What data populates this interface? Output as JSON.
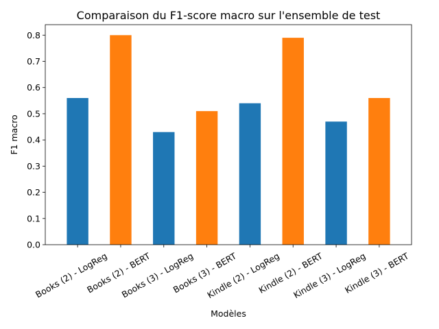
{
  "chart_data": {
    "type": "bar",
    "title": "Comparaison du F1-score macro sur l'ensemble de test",
    "xlabel": "Modèles",
    "ylabel": "F1 macro",
    "ylim": [
      0,
      0.84
    ],
    "yticks": [
      "0.0",
      "0.1",
      "0.2",
      "0.3",
      "0.4",
      "0.5",
      "0.6",
      "0.7",
      "0.8"
    ],
    "categories": [
      "Books (2) - LogReg",
      "Books (2) - BERT",
      "Books (3) - LogReg",
      "Books (3) - BERT",
      "Kindle (2) - LogReg",
      "Kindle (2) - BERT",
      "Kindle (3) - LogReg",
      "Kindle (3) - BERT"
    ],
    "values": [
      0.56,
      0.8,
      0.43,
      0.51,
      0.54,
      0.79,
      0.47,
      0.56
    ],
    "bar_colors": [
      "#1f77b4",
      "#ff7f0e",
      "#1f77b4",
      "#ff7f0e",
      "#1f77b4",
      "#ff7f0e",
      "#1f77b4",
      "#ff7f0e"
    ],
    "grid": false,
    "legend": "none"
  }
}
